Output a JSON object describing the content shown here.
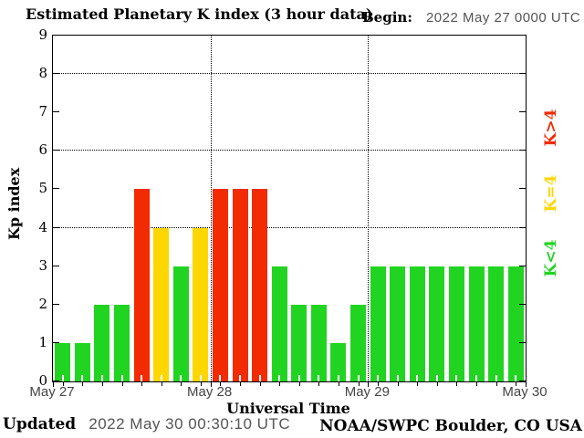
{
  "header": {
    "title": "Estimated Planetary K index (3 hour data)",
    "begin_label": "Begin:",
    "begin_value": "2022 May 27 0000 UTC"
  },
  "footer": {
    "updated_label": "Updated",
    "updated_value": "2022 May 30 00:30:10 UTC",
    "credit": "NOAA/SWPC Boulder, CO USA"
  },
  "chart_data": {
    "type": "bar",
    "title": "Estimated Planetary K index (3 hour data)",
    "xlabel": "Universal Time",
    "ylabel": "Kp index",
    "ylim": [
      0,
      9
    ],
    "yticks": [
      0,
      1,
      2,
      3,
      4,
      5,
      6,
      7,
      8,
      9
    ],
    "grid_y_dotted": [
      4,
      6,
      8
    ],
    "hours_per_bar": 3,
    "x_day_ticks": [
      "May 27",
      "May 28",
      "May 29",
      "May 30"
    ],
    "bars": [
      {
        "day": "May 27",
        "values": [
          1,
          1,
          2,
          2,
          5,
          4,
          3,
          4
        ]
      },
      {
        "day": "May 28",
        "values": [
          5,
          5,
          5,
          3,
          2,
          2,
          1,
          2
        ]
      },
      {
        "day": "May 29",
        "values": [
          3,
          3,
          3,
          3,
          3,
          3,
          3,
          3
        ]
      }
    ],
    "color_rule": {
      "gt4": "#F22B00",
      "eq4": "#FFD700",
      "lt4": "#22D422"
    },
    "legend": [
      {
        "label": "K>4",
        "color": "#F22B00"
      },
      {
        "label": "K=4",
        "color": "#FFD700"
      },
      {
        "label": "K<4",
        "color": "#22D422"
      }
    ],
    "legend_position": "right-rotated",
    "grid": "dotted"
  },
  "colors": {
    "text": "#000000",
    "datetime_text": "#555555",
    "background": "#FFFFFF"
  }
}
